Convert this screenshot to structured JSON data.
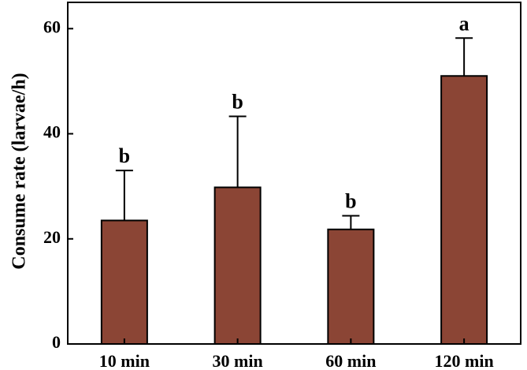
{
  "chart_data": {
    "type": "bar",
    "title": "",
    "xlabel": "",
    "ylabel": "Consume rate (larvae/h)",
    "categories": [
      "10 min",
      "30 min",
      "60 min",
      "120 min"
    ],
    "values": [
      23.5,
      29.8,
      21.8,
      51.0
    ],
    "error_upper": [
      33.0,
      43.3,
      24.4,
      58.2
    ],
    "significance": [
      "b",
      "b",
      "b",
      "a"
    ],
    "ylim": [
      0,
      65
    ],
    "yticks": [
      "0",
      "20",
      "40",
      "60"
    ],
    "grid": false,
    "bar_color": "#8b4535",
    "axis_color": "#000000"
  }
}
